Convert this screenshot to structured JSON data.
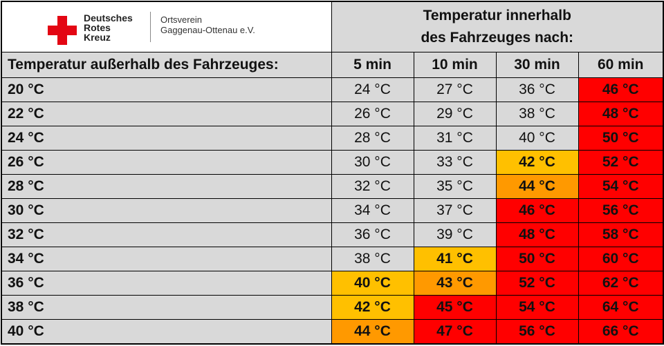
{
  "logo": {
    "org_lines": [
      "Deutsches",
      "Rotes",
      "Kreuz"
    ],
    "branch_lines": [
      "Ortsverein",
      "Gaggenau-Ottenau e.V."
    ]
  },
  "header": {
    "title_lines": [
      "Temperatur innerhalb",
      "des Fahrzeuges nach:"
    ],
    "row_label": "Temperatur außerhalb des Fahrzeuges:",
    "columns": [
      "5 min",
      "10 min",
      "30 min",
      "60 min"
    ]
  },
  "rows": [
    {
      "outside": "20 °C",
      "cells": [
        {
          "text": "24 °C"
        },
        {
          "text": "27 °C"
        },
        {
          "text": "36 °C"
        },
        {
          "text": "46 °C",
          "color": "#ff0000"
        }
      ]
    },
    {
      "outside": "22 °C",
      "cells": [
        {
          "text": "26 °C"
        },
        {
          "text": "29 °C"
        },
        {
          "text": "38 °C"
        },
        {
          "text": "48 °C",
          "color": "#ff0000"
        }
      ]
    },
    {
      "outside": "24 °C",
      "cells": [
        {
          "text": "28 °C"
        },
        {
          "text": "31 °C"
        },
        {
          "text": "40 °C"
        },
        {
          "text": "50 °C",
          "color": "#ff0000"
        }
      ]
    },
    {
      "outside": "26 °C",
      "cells": [
        {
          "text": "30 °C"
        },
        {
          "text": "33 °C"
        },
        {
          "text": "42 °C",
          "color": "#ffc000"
        },
        {
          "text": "52 °C",
          "color": "#ff0000"
        }
      ]
    },
    {
      "outside": "28 °C",
      "cells": [
        {
          "text": "32 °C"
        },
        {
          "text": "35 °C"
        },
        {
          "text": "44 °C",
          "color": "#ff9900"
        },
        {
          "text": "54 °C",
          "color": "#ff0000"
        }
      ]
    },
    {
      "outside": "30 °C",
      "cells": [
        {
          "text": "34 °C"
        },
        {
          "text": "37 °C"
        },
        {
          "text": "46 °C",
          "color": "#ff0000"
        },
        {
          "text": "56 °C",
          "color": "#ff0000"
        }
      ]
    },
    {
      "outside": "32 °C",
      "cells": [
        {
          "text": "36 °C"
        },
        {
          "text": "39 °C"
        },
        {
          "text": "48 °C",
          "color": "#ff0000"
        },
        {
          "text": "58 °C",
          "color": "#ff0000"
        }
      ]
    },
    {
      "outside": "34 °C",
      "cells": [
        {
          "text": "38 °C"
        },
        {
          "text": "41 °C",
          "color": "#ffc000"
        },
        {
          "text": "50 °C",
          "color": "#ff0000"
        },
        {
          "text": "60 °C",
          "color": "#ff0000"
        }
      ]
    },
    {
      "outside": "36 °C",
      "cells": [
        {
          "text": "40 °C",
          "color": "#ffc000"
        },
        {
          "text": "43 °C",
          "color": "#ff9900"
        },
        {
          "text": "52 °C",
          "color": "#ff0000"
        },
        {
          "text": "62 °C",
          "color": "#ff0000"
        }
      ]
    },
    {
      "outside": "38 °C",
      "cells": [
        {
          "text": "42 °C",
          "color": "#ffc000"
        },
        {
          "text": "45 °C",
          "color": "#ff0000"
        },
        {
          "text": "54 °C",
          "color": "#ff0000"
        },
        {
          "text": "64 °C",
          "color": "#ff0000"
        }
      ]
    },
    {
      "outside": "40 °C",
      "cells": [
        {
          "text": "44 °C",
          "color": "#ff9900"
        },
        {
          "text": "47 °C",
          "color": "#ff0000"
        },
        {
          "text": "56 °C",
          "color": "#ff0000"
        },
        {
          "text": "66 °C",
          "color": "#ff0000"
        }
      ]
    }
  ]
}
